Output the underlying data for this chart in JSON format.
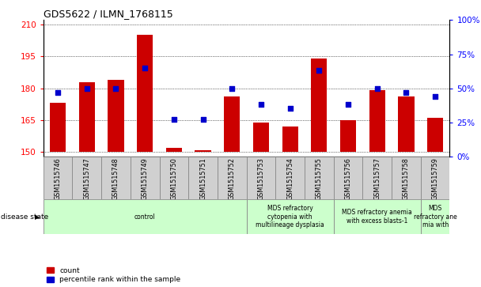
{
  "title": "GDS5622 / ILMN_1768115",
  "samples": [
    "GSM1515746",
    "GSM1515747",
    "GSM1515748",
    "GSM1515749",
    "GSM1515750",
    "GSM1515751",
    "GSM1515752",
    "GSM1515753",
    "GSM1515754",
    "GSM1515755",
    "GSM1515756",
    "GSM1515757",
    "GSM1515758",
    "GSM1515759"
  ],
  "bar_values": [
    173,
    183,
    184,
    205,
    152,
    151,
    176,
    164,
    162,
    194,
    165,
    179,
    176,
    166
  ],
  "dot_values_pct": [
    47,
    50,
    50,
    65,
    27,
    27,
    50,
    38,
    35,
    63,
    38,
    50,
    47,
    44
  ],
  "bar_color": "#cc0000",
  "dot_color": "#0000cc",
  "ylim_left": [
    148,
    212
  ],
  "ylim_right": [
    0,
    100
  ],
  "yticks_left": [
    150,
    165,
    180,
    195,
    210
  ],
  "yticks_right": [
    0,
    25,
    50,
    75,
    100
  ],
  "disease_groups": [
    {
      "label": "control",
      "start": 0,
      "end": 7
    },
    {
      "label": "MDS refractory\ncytopenia with\nmultilineage dysplasia",
      "start": 7,
      "end": 10
    },
    {
      "label": "MDS refractory anemia\nwith excess blasts-1",
      "start": 10,
      "end": 13
    },
    {
      "label": "MDS\nrefractory ane\nmia with",
      "start": 13,
      "end": 14
    }
  ],
  "disease_state_label": "disease state",
  "legend_count": "count",
  "legend_pct": "percentile rank within the sample",
  "bar_width": 0.55,
  "baseline": 150,
  "grid_color": "#000000",
  "group_color": "#ccffcc",
  "label_bg_color": "#d0d0d0"
}
